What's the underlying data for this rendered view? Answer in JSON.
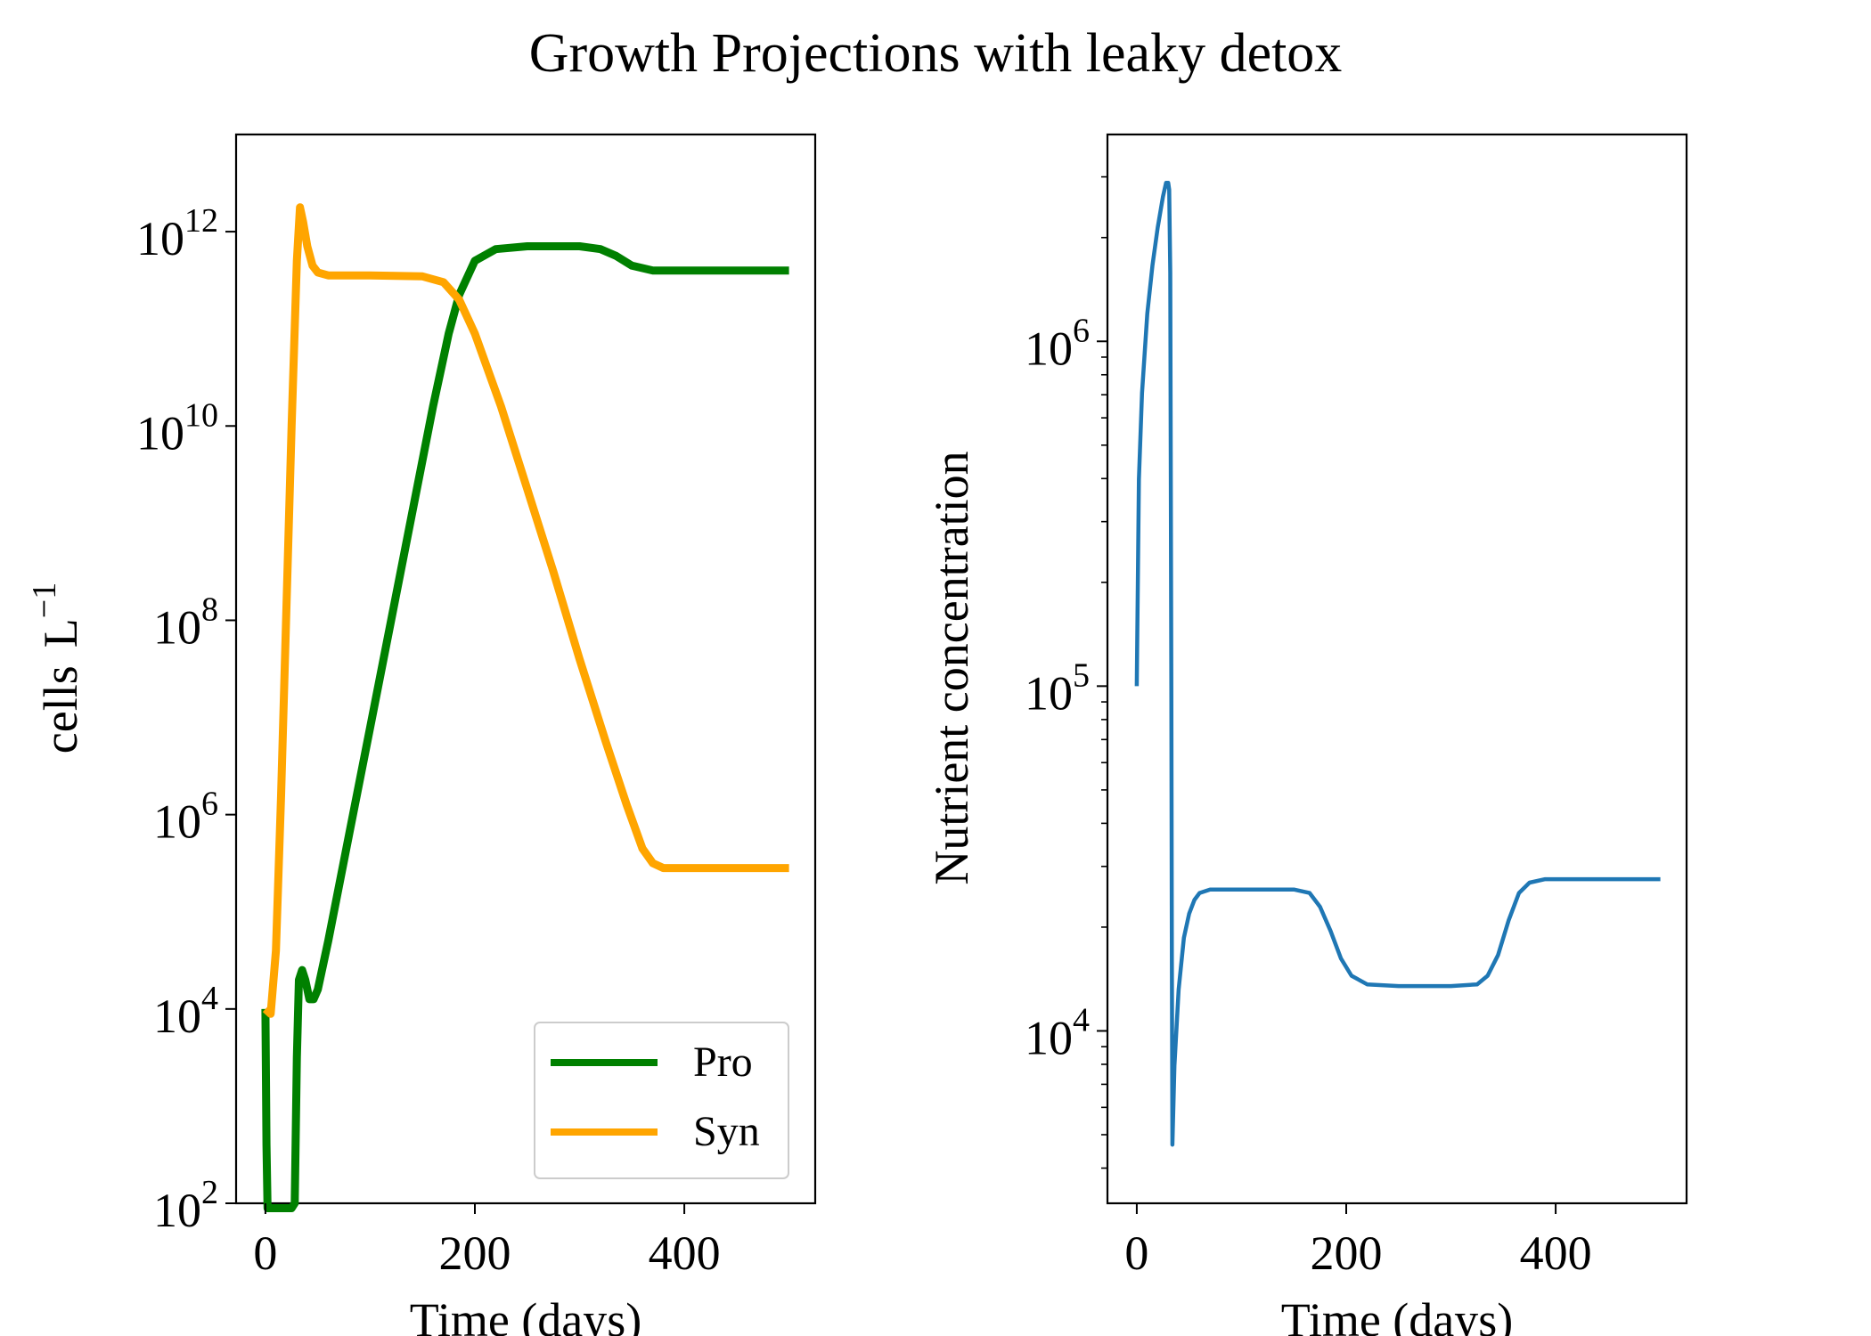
{
  "title": "Growth Projections with leaky detox",
  "chart_data": [
    {
      "type": "line",
      "xlabel": "Time (days)",
      "ylabel_base": "cells",
      "ylabel_unit": "L",
      "ylabel_exp": "−1",
      "xlim": [
        -28,
        525
      ],
      "ylim_log10": [
        2,
        13.0
      ],
      "yscale": "log",
      "x_ticks": [
        0,
        200,
        400
      ],
      "y_ticks": [
        {
          "exp": 2,
          "base": "10",
          "sup": "2"
        },
        {
          "exp": 4,
          "base": "10",
          "sup": "4"
        },
        {
          "exp": 6,
          "base": "10",
          "sup": "6"
        },
        {
          "exp": 8,
          "base": "10",
          "sup": "8"
        },
        {
          "exp": 10,
          "base": "10",
          "sup": "10"
        },
        {
          "exp": 12,
          "base": "10",
          "sup": "12"
        }
      ],
      "legend": {
        "placement": "lower-right"
      },
      "series": [
        {
          "name": "Pro",
          "color": "#008000",
          "points": [
            [
              0,
              4.0
            ],
            [
              1,
              2.6
            ],
            [
              2,
              1.5
            ],
            [
              25,
              1.0
            ],
            [
              28,
              2.0
            ],
            [
              30,
              3.5
            ],
            [
              32,
              4.3
            ],
            [
              35,
              4.4
            ],
            [
              38,
              4.3
            ],
            [
              42,
              4.1
            ],
            [
              46,
              4.1
            ],
            [
              50,
              4.2
            ],
            [
              60,
              4.7
            ],
            [
              80,
              5.8
            ],
            [
              100,
              6.9
            ],
            [
              120,
              8.0
            ],
            [
              140,
              9.1
            ],
            [
              160,
              10.2
            ],
            [
              175,
              10.95
            ],
            [
              185,
              11.35
            ],
            [
              200,
              11.7
            ],
            [
              220,
              11.82
            ],
            [
              250,
              11.85
            ],
            [
              300,
              11.85
            ],
            [
              320,
              11.82
            ],
            [
              335,
              11.75
            ],
            [
              350,
              11.65
            ],
            [
              370,
              11.6
            ],
            [
              400,
              11.6
            ],
            [
              450,
              11.6
            ],
            [
              500,
              11.6
            ]
          ]
        },
        {
          "name": "Syn",
          "color": "#FFA500",
          "points": [
            [
              0,
              4.0
            ],
            [
              5,
              3.95
            ],
            [
              10,
              4.6
            ],
            [
              15,
              6.2
            ],
            [
              20,
              8.1
            ],
            [
              25,
              10.0
            ],
            [
              30,
              11.7
            ],
            [
              33,
              12.25
            ],
            [
              36,
              12.1
            ],
            [
              40,
              11.85
            ],
            [
              45,
              11.65
            ],
            [
              50,
              11.58
            ],
            [
              60,
              11.55
            ],
            [
              100,
              11.55
            ],
            [
              150,
              11.54
            ],
            [
              170,
              11.48
            ],
            [
              185,
              11.3
            ],
            [
              200,
              10.95
            ],
            [
              225,
              10.2
            ],
            [
              250,
              9.35
            ],
            [
              275,
              8.5
            ],
            [
              300,
              7.6
            ],
            [
              325,
              6.75
            ],
            [
              345,
              6.1
            ],
            [
              360,
              5.65
            ],
            [
              370,
              5.5
            ],
            [
              380,
              5.45
            ],
            [
              400,
              5.45
            ],
            [
              450,
              5.45
            ],
            [
              500,
              5.45
            ]
          ]
        }
      ]
    },
    {
      "type": "line",
      "xlabel": "Time (days)",
      "ylabel": "Nutrient concentration",
      "xlim": [
        -28,
        525
      ],
      "ylim_log10": [
        3.5,
        6.6
      ],
      "yscale": "log",
      "x_ticks": [
        0,
        200,
        400
      ],
      "y_ticks": [
        {
          "exp": 4,
          "base": "10",
          "sup": "4"
        },
        {
          "exp": 5,
          "base": "10",
          "sup": "5"
        },
        {
          "exp": 6,
          "base": "10",
          "sup": "6"
        }
      ],
      "series": [
        {
          "color": "#1f77b4",
          "points": [
            [
              0,
              5.0
            ],
            [
              2,
              5.6
            ],
            [
              5,
              5.85
            ],
            [
              10,
              6.08
            ],
            [
              15,
              6.22
            ],
            [
              20,
              6.33
            ],
            [
              25,
              6.42
            ],
            [
              28,
              6.46
            ],
            [
              30,
              6.46
            ],
            [
              31,
              6.44
            ],
            [
              32,
              6.2
            ],
            [
              33,
              5.0
            ],
            [
              33.5,
              4.2
            ],
            [
              34,
              3.67
            ],
            [
              36,
              3.9
            ],
            [
              40,
              4.12
            ],
            [
              45,
              4.27
            ],
            [
              50,
              4.34
            ],
            [
              55,
              4.38
            ],
            [
              60,
              4.4
            ],
            [
              70,
              4.41
            ],
            [
              100,
              4.41
            ],
            [
              150,
              4.41
            ],
            [
              165,
              4.4
            ],
            [
              175,
              4.36
            ],
            [
              185,
              4.29
            ],
            [
              195,
              4.21
            ],
            [
              205,
              4.16
            ],
            [
              220,
              4.135
            ],
            [
              250,
              4.13
            ],
            [
              300,
              4.13
            ],
            [
              325,
              4.135
            ],
            [
              335,
              4.16
            ],
            [
              345,
              4.22
            ],
            [
              355,
              4.32
            ],
            [
              365,
              4.4
            ],
            [
              375,
              4.43
            ],
            [
              390,
              4.44
            ],
            [
              450,
              4.44
            ],
            [
              500,
              4.44
            ]
          ]
        }
      ]
    }
  ]
}
